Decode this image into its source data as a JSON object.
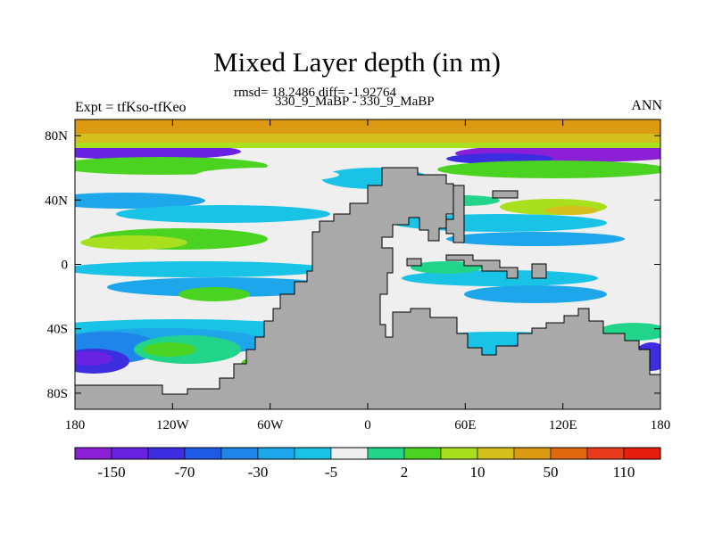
{
  "chart_data": {
    "type": "heatmap",
    "title": "Mixed Layer depth (in m)",
    "subtitle": "rmsd= 18.2486 diff= -1.92764",
    "left_label": "Expt = tfKso-tfKeo",
    "center_label": "330_9_MaBP - 330_9_MaBP",
    "right_label": "ANN",
    "x_ticks": [
      "180",
      "120W",
      "60W",
      "0",
      "60E",
      "120E",
      "180"
    ],
    "x_tick_values": [
      -180,
      -120,
      -60,
      0,
      60,
      120,
      180
    ],
    "y_ticks": [
      "80N",
      "40N",
      "0",
      "40S",
      "80S"
    ],
    "y_tick_values": [
      80,
      40,
      0,
      -40,
      -80
    ],
    "xlim": [
      -180,
      180
    ],
    "ylim": [
      -90,
      90
    ],
    "colorbar": {
      "colors": [
        "#8a1fd6",
        "#6a22e2",
        "#3c2ee0",
        "#1f5ae6",
        "#1e86e8",
        "#1ea6ea",
        "#19c3e6",
        "#efefef",
        "#22d48a",
        "#4ad320",
        "#a8e01e",
        "#d4c01c",
        "#dc9a12",
        "#e2680f",
        "#e83c1a",
        "#e41d0d"
      ],
      "labels": [
        "-150",
        "-70",
        "-30",
        "-5",
        "2",
        "10",
        "50",
        "110"
      ],
      "label_positions": [
        1,
        3,
        5,
        7,
        9,
        11,
        13,
        15
      ]
    },
    "land_color": "#a9a9a9"
  }
}
